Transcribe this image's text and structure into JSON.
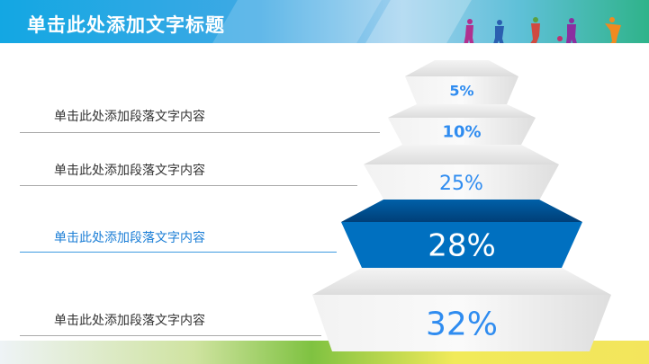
{
  "header": {
    "title": "单击此处添加文字标题"
  },
  "items": [
    {
      "text": "单击此处添加段落文字内容",
      "active": false
    },
    {
      "text": "单击此处添加段落文字内容",
      "active": false
    },
    {
      "text": "单击此处添加段落文字内容",
      "active": true
    },
    {
      "text": "单击此处添加段落文字内容",
      "active": false
    }
  ],
  "pyramid": {
    "tiers": [
      {
        "label": "5%",
        "highlight": false
      },
      {
        "label": "10%",
        "highlight": false
      },
      {
        "label": "25%",
        "highlight": false
      },
      {
        "label": "28%",
        "highlight": true
      },
      {
        "label": "32%",
        "highlight": false
      }
    ]
  },
  "colors": {
    "accent": "#0070c0",
    "label": "#2f8cf0",
    "text": "#333333",
    "active_text": "#1b7ed6"
  }
}
